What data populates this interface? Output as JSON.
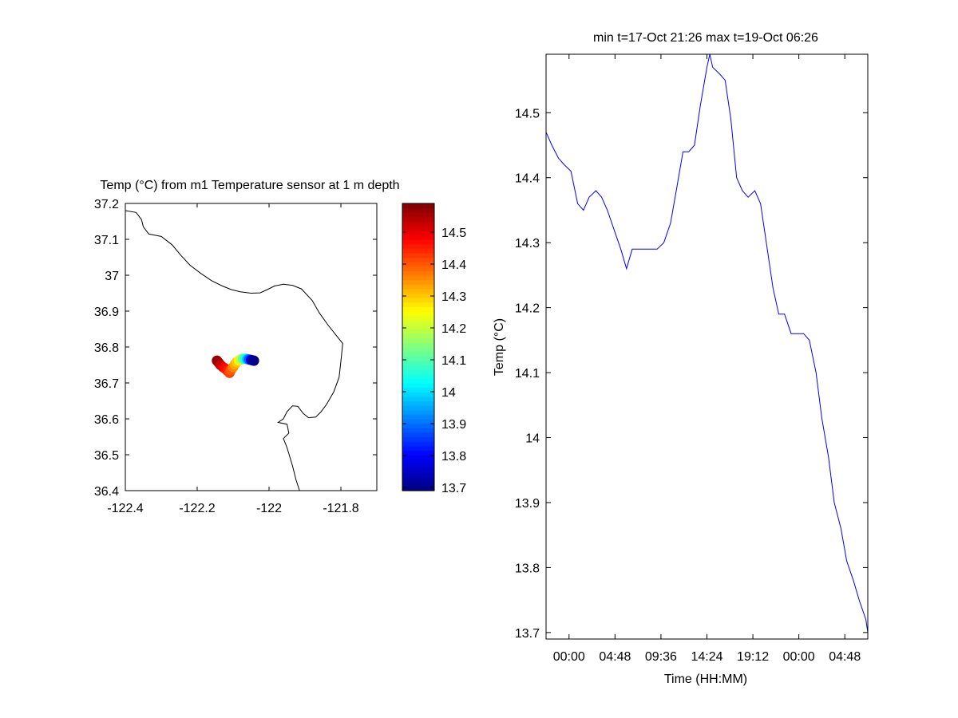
{
  "colors": {
    "background": "#ffffff",
    "axes": "#000000",
    "coastline": "#000000",
    "timeseries_line": "#0000ff",
    "colormap": "jet"
  },
  "chart_data": [
    {
      "type": "scatter",
      "subtype": "map",
      "title": "Temp (°C) from m1 Temperature sensor at 1 m depth",
      "xlabel": "",
      "ylabel": "",
      "xlim": [
        -122.4,
        -121.7
      ],
      "ylim": [
        36.4,
        37.2
      ],
      "xticks": [
        -122.4,
        -122.2,
        -122,
        -121.8
      ],
      "xtick_labels": [
        "-122.4",
        "-122.2",
        "-122",
        "-121.8"
      ],
      "yticks": [
        36.4,
        36.5,
        36.6,
        36.7,
        36.8,
        36.9,
        37,
        37.1,
        37.2
      ],
      "ytick_labels": [
        "36.4",
        "36.5",
        "36.6",
        "36.7",
        "36.8",
        "36.9",
        "37",
        "37.1",
        "37.2"
      ],
      "grid": false,
      "colorbar": {
        "range": [
          13.69,
          14.59
        ],
        "ticks": [
          13.7,
          13.8,
          13.9,
          14,
          14.1,
          14.2,
          14.3,
          14.4,
          14.5
        ],
        "tick_labels": [
          "13.7",
          "13.8",
          "13.9",
          "14",
          "14.1",
          "14.2",
          "14.3",
          "14.4",
          "14.5"
        ]
      },
      "coastline": [
        [
          -122.4,
          37.18
        ],
        [
          -122.37,
          37.175
        ],
        [
          -122.355,
          37.155
        ],
        [
          -122.35,
          37.135
        ],
        [
          -122.335,
          37.115
        ],
        [
          -122.32,
          37.112
        ],
        [
          -122.3,
          37.108
        ],
        [
          -122.27,
          37.085
        ],
        [
          -122.245,
          37.055
        ],
        [
          -122.22,
          37.028
        ],
        [
          -122.19,
          37.005
        ],
        [
          -122.16,
          36.985
        ],
        [
          -122.13,
          36.97
        ],
        [
          -122.105,
          36.96
        ],
        [
          -122.08,
          36.954
        ],
        [
          -122.05,
          36.95
        ],
        [
          -122.025,
          36.951
        ],
        [
          -122.005,
          36.96
        ],
        [
          -121.985,
          36.97
        ],
        [
          -121.96,
          36.975
        ],
        [
          -121.935,
          36.972
        ],
        [
          -121.91,
          36.962
        ],
        [
          -121.88,
          36.93
        ],
        [
          -121.86,
          36.895
        ],
        [
          -121.835,
          36.86
        ],
        [
          -121.815,
          36.835
        ],
        [
          -121.795,
          36.81
        ],
        [
          -121.8,
          36.76
        ],
        [
          -121.805,
          36.715
        ],
        [
          -121.82,
          36.675
        ],
        [
          -121.84,
          36.64
        ],
        [
          -121.855,
          36.62
        ],
        [
          -121.87,
          36.605
        ],
        [
          -121.89,
          36.603
        ],
        [
          -121.905,
          36.615
        ],
        [
          -121.92,
          36.635
        ],
        [
          -121.935,
          36.636
        ],
        [
          -121.95,
          36.62
        ],
        [
          -121.96,
          36.6
        ],
        [
          -121.975,
          36.59
        ],
        [
          -121.95,
          36.585
        ],
        [
          -121.945,
          36.56
        ],
        [
          -121.96,
          36.545
        ],
        [
          -121.95,
          36.52
        ],
        [
          -121.935,
          36.47
        ],
        [
          -121.925,
          36.43
        ],
        [
          -121.915,
          36.4
        ]
      ],
      "points": [
        {
          "lon": -122.145,
          "lat": 36.762,
          "temp": 14.58
        },
        {
          "lon": -122.14,
          "lat": 36.756,
          "temp": 14.56
        },
        {
          "lon": -122.135,
          "lat": 36.75,
          "temp": 14.53
        },
        {
          "lon": -122.128,
          "lat": 36.744,
          "temp": 14.5
        },
        {
          "lon": -122.122,
          "lat": 36.74,
          "temp": 14.47
        },
        {
          "lon": -122.116,
          "lat": 36.734,
          "temp": 14.45
        },
        {
          "lon": -122.11,
          "lat": 36.728,
          "temp": 14.42
        },
        {
          "lon": -122.106,
          "lat": 36.736,
          "temp": 14.4
        },
        {
          "lon": -122.1,
          "lat": 36.744,
          "temp": 14.36
        },
        {
          "lon": -122.095,
          "lat": 36.752,
          "temp": 14.33
        },
        {
          "lon": -122.09,
          "lat": 36.758,
          "temp": 14.3
        },
        {
          "lon": -122.084,
          "lat": 36.763,
          "temp": 14.26
        },
        {
          "lon": -122.078,
          "lat": 36.766,
          "temp": 14.2
        },
        {
          "lon": -122.072,
          "lat": 36.767,
          "temp": 14.12
        },
        {
          "lon": -122.066,
          "lat": 36.767,
          "temp": 14.04
        },
        {
          "lon": -122.06,
          "lat": 36.766,
          "temp": 13.96
        },
        {
          "lon": -122.055,
          "lat": 36.765,
          "temp": 13.88
        },
        {
          "lon": -122.05,
          "lat": 36.764,
          "temp": 13.8
        },
        {
          "lon": -122.046,
          "lat": 36.763,
          "temp": 13.74
        },
        {
          "lon": -122.042,
          "lat": 36.762,
          "temp": 13.7
        }
      ]
    },
    {
      "type": "line",
      "title": "min t=17-Oct 21:26 max t=19-Oct 06:26",
      "xlabel": "Time (HH:MM)",
      "ylabel": "Temp (°C)",
      "xlim": [
        -2.4,
        31.2
      ],
      "ylim": [
        13.69,
        14.59
      ],
      "xticks": [
        0,
        4.8,
        9.6,
        14.4,
        19.2,
        24,
        28.8
      ],
      "xtick_labels": [
        "00:00",
        "04:48",
        "09:36",
        "14:24",
        "19:12",
        "00:00",
        "04:48"
      ],
      "yticks": [
        13.7,
        13.8,
        13.9,
        14,
        14.1,
        14.2,
        14.3,
        14.4,
        14.5
      ],
      "ytick_labels": [
        "13.7",
        "13.8",
        "13.9",
        "14",
        "14.1",
        "14.2",
        "14.3",
        "14.4",
        "14.5"
      ],
      "grid": false,
      "series": [
        {
          "name": "",
          "x": [
            -2.4,
            -1.8,
            -1.1,
            -0.5,
            0.2,
            0.9,
            1.5,
            2.1,
            2.8,
            3.4,
            4.0,
            4.7,
            5.4,
            6.0,
            6.6,
            7.3,
            7.9,
            8.6,
            9.2,
            9.9,
            10.6,
            11.2,
            11.9,
            12.5,
            13.1,
            13.7,
            14.4,
            14.7,
            15.0,
            15.7,
            16.3,
            16.9,
            17.5,
            18.1,
            18.7,
            19.4,
            20.0,
            20.6,
            21.3,
            21.9,
            22.5,
            23.2,
            23.8,
            24.5,
            25.1,
            25.8,
            26.4,
            27.1,
            27.7,
            28.4,
            29.0,
            29.7,
            30.3,
            31.0,
            31.2
          ],
          "y": [
            14.47,
            14.45,
            14.43,
            14.42,
            14.41,
            14.36,
            14.35,
            14.37,
            14.38,
            14.37,
            14.35,
            14.32,
            14.29,
            14.26,
            14.29,
            14.29,
            14.29,
            14.29,
            14.29,
            14.3,
            14.33,
            14.38,
            14.44,
            14.44,
            14.45,
            14.51,
            14.57,
            14.59,
            14.57,
            14.56,
            14.55,
            14.49,
            14.4,
            14.38,
            14.37,
            14.38,
            14.36,
            14.3,
            14.23,
            14.19,
            14.19,
            14.16,
            14.16,
            14.16,
            14.15,
            14.1,
            14.03,
            13.97,
            13.9,
            13.86,
            13.81,
            13.78,
            13.75,
            13.72,
            13.7
          ]
        }
      ]
    }
  ]
}
